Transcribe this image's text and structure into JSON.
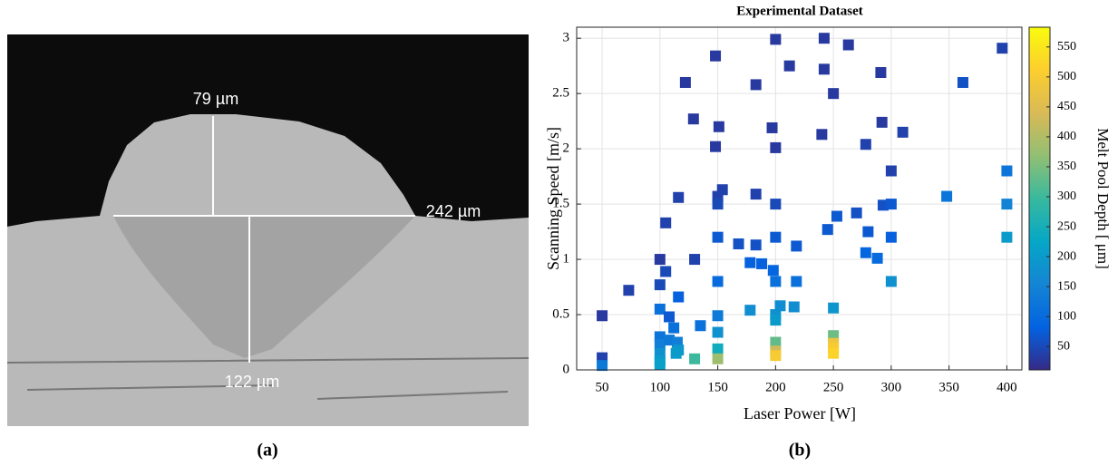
{
  "micrograph": {
    "labels": [
      "79 µm",
      "242 µm",
      "122 µm"
    ]
  },
  "captions": [
    "(a)",
    "(b)"
  ],
  "chart_data": {
    "type": "scatter",
    "title": "Experimental Dataset",
    "x_label": "Laser Power [W]",
    "y_label": "Scanning Speed [m/s]",
    "color_label": "Melt Pool Depth [ μm]",
    "x": [
      50,
      50,
      50,
      73,
      100,
      100,
      105,
      105,
      100,
      108,
      100,
      100,
      100,
      100,
      100,
      108,
      112,
      115,
      116,
      114,
      116,
      116,
      122,
      129,
      130,
      135,
      130,
      148,
      148,
      151,
      154,
      150,
      150,
      150,
      150,
      150,
      150,
      150,
      150,
      168,
      178,
      178,
      183,
      183,
      183,
      188,
      197,
      200,
      200,
      200,
      200,
      198,
      200,
      200,
      200,
      204,
      200,
      200,
      200,
      212,
      218,
      218,
      216,
      240,
      242,
      242,
      245,
      250,
      250,
      250,
      250,
      250,
      250,
      253,
      263,
      270,
      278,
      278,
      280,
      288,
      291,
      292,
      293,
      300,
      300,
      300,
      300,
      310,
      348,
      362,
      396,
      400,
      400,
      400
    ],
    "values": [
      0.49,
      0.11,
      0.04,
      0.72,
      1.0,
      0.77,
      1.33,
      0.89,
      0.55,
      0.48,
      0.3,
      0.23,
      0.15,
      0.08,
      0.05,
      0.27,
      0.38,
      0.25,
      0.18,
      0.15,
      0.66,
      1.56,
      2.6,
      2.27,
      1.0,
      0.4,
      0.1,
      2.84,
      2.02,
      2.2,
      1.63,
      1.57,
      1.5,
      1.2,
      0.8,
      0.49,
      0.34,
      0.19,
      0.1,
      1.14,
      0.97,
      0.54,
      2.58,
      1.59,
      1.13,
      0.96,
      2.19,
      2.99,
      2.01,
      1.5,
      1.2,
      0.9,
      0.8,
      0.5,
      0.45,
      0.58,
      0.25,
      0.17,
      0.13,
      2.75,
      1.12,
      0.8,
      0.57,
      2.13,
      3.0,
      2.72,
      1.27,
      2.5,
      0.56,
      0.31,
      0.24,
      0.2,
      0.15,
      1.39,
      2.94,
      1.42,
      2.04,
      1.06,
      1.25,
      1.01,
      2.69,
      2.24,
      1.49,
      1.8,
      1.5,
      1.2,
      0.8,
      2.15,
      1.57,
      2.6,
      2.91,
      1.8,
      1.5,
      1.2
    ],
    "color_values": [
      30,
      40,
      130,
      40,
      30,
      50,
      40,
      50,
      110,
      70,
      120,
      140,
      180,
      200,
      210,
      130,
      110,
      140,
      190,
      200,
      80,
      40,
      30,
      30,
      40,
      110,
      300,
      30,
      30,
      30,
      40,
      40,
      50,
      70,
      100,
      130,
      180,
      240,
      380,
      60,
      80,
      170,
      30,
      40,
      60,
      80,
      30,
      30,
      30,
      50,
      70,
      90,
      110,
      180,
      200,
      170,
      330,
      430,
      500,
      30,
      70,
      110,
      170,
      30,
      30,
      30,
      70,
      30,
      190,
      340,
      480,
      500,
      520,
      70,
      30,
      60,
      40,
      90,
      70,
      100,
      30,
      30,
      60,
      40,
      70,
      80,
      180,
      40,
      120,
      60,
      40,
      120,
      150,
      200
    ],
    "colormap": "parula",
    "xlim": [
      28,
      413
    ],
    "xticks": [
      50,
      100,
      150,
      200,
      250,
      300,
      350,
      400
    ],
    "ylim": [
      0,
      3.1
    ],
    "yticks": [
      0,
      0.5,
      1,
      1.5,
      2,
      2.5,
      3
    ],
    "clim": [
      11,
      583
    ],
    "cticks": [
      50,
      100,
      150,
      200,
      250,
      300,
      350,
      400,
      450,
      500,
      550
    ],
    "grid": true
  }
}
